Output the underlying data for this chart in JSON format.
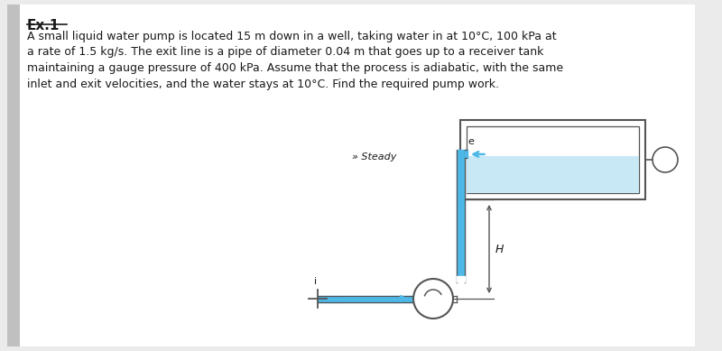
{
  "title": "Ex.1",
  "body_text": "A small liquid water pump is located 15 m down in a well, taking water in at 10°C, 100 kPa at\na rate of 1.5 kg/s. The exit line is a pipe of diameter 0.04 m that goes up to a receiver tank\nmaintaining a gauge pressure of 400 kPa. Assume that the process is adiabatic, with the same\ninlet and exit velocities, and the water stays at 10°C. Find the required pump work.",
  "subtitle": "» Steady",
  "bg_color": "#ebebeb",
  "page_color": "#ffffff",
  "text_color": "#1a1a1a",
  "pipe_color": "#4db8e8",
  "outline_color": "#555555",
  "water_color": "#c8e8f5",
  "label_H": "H",
  "label_e": "e",
  "label_i": "i",
  "left_bar_color": "#c0c0c0"
}
